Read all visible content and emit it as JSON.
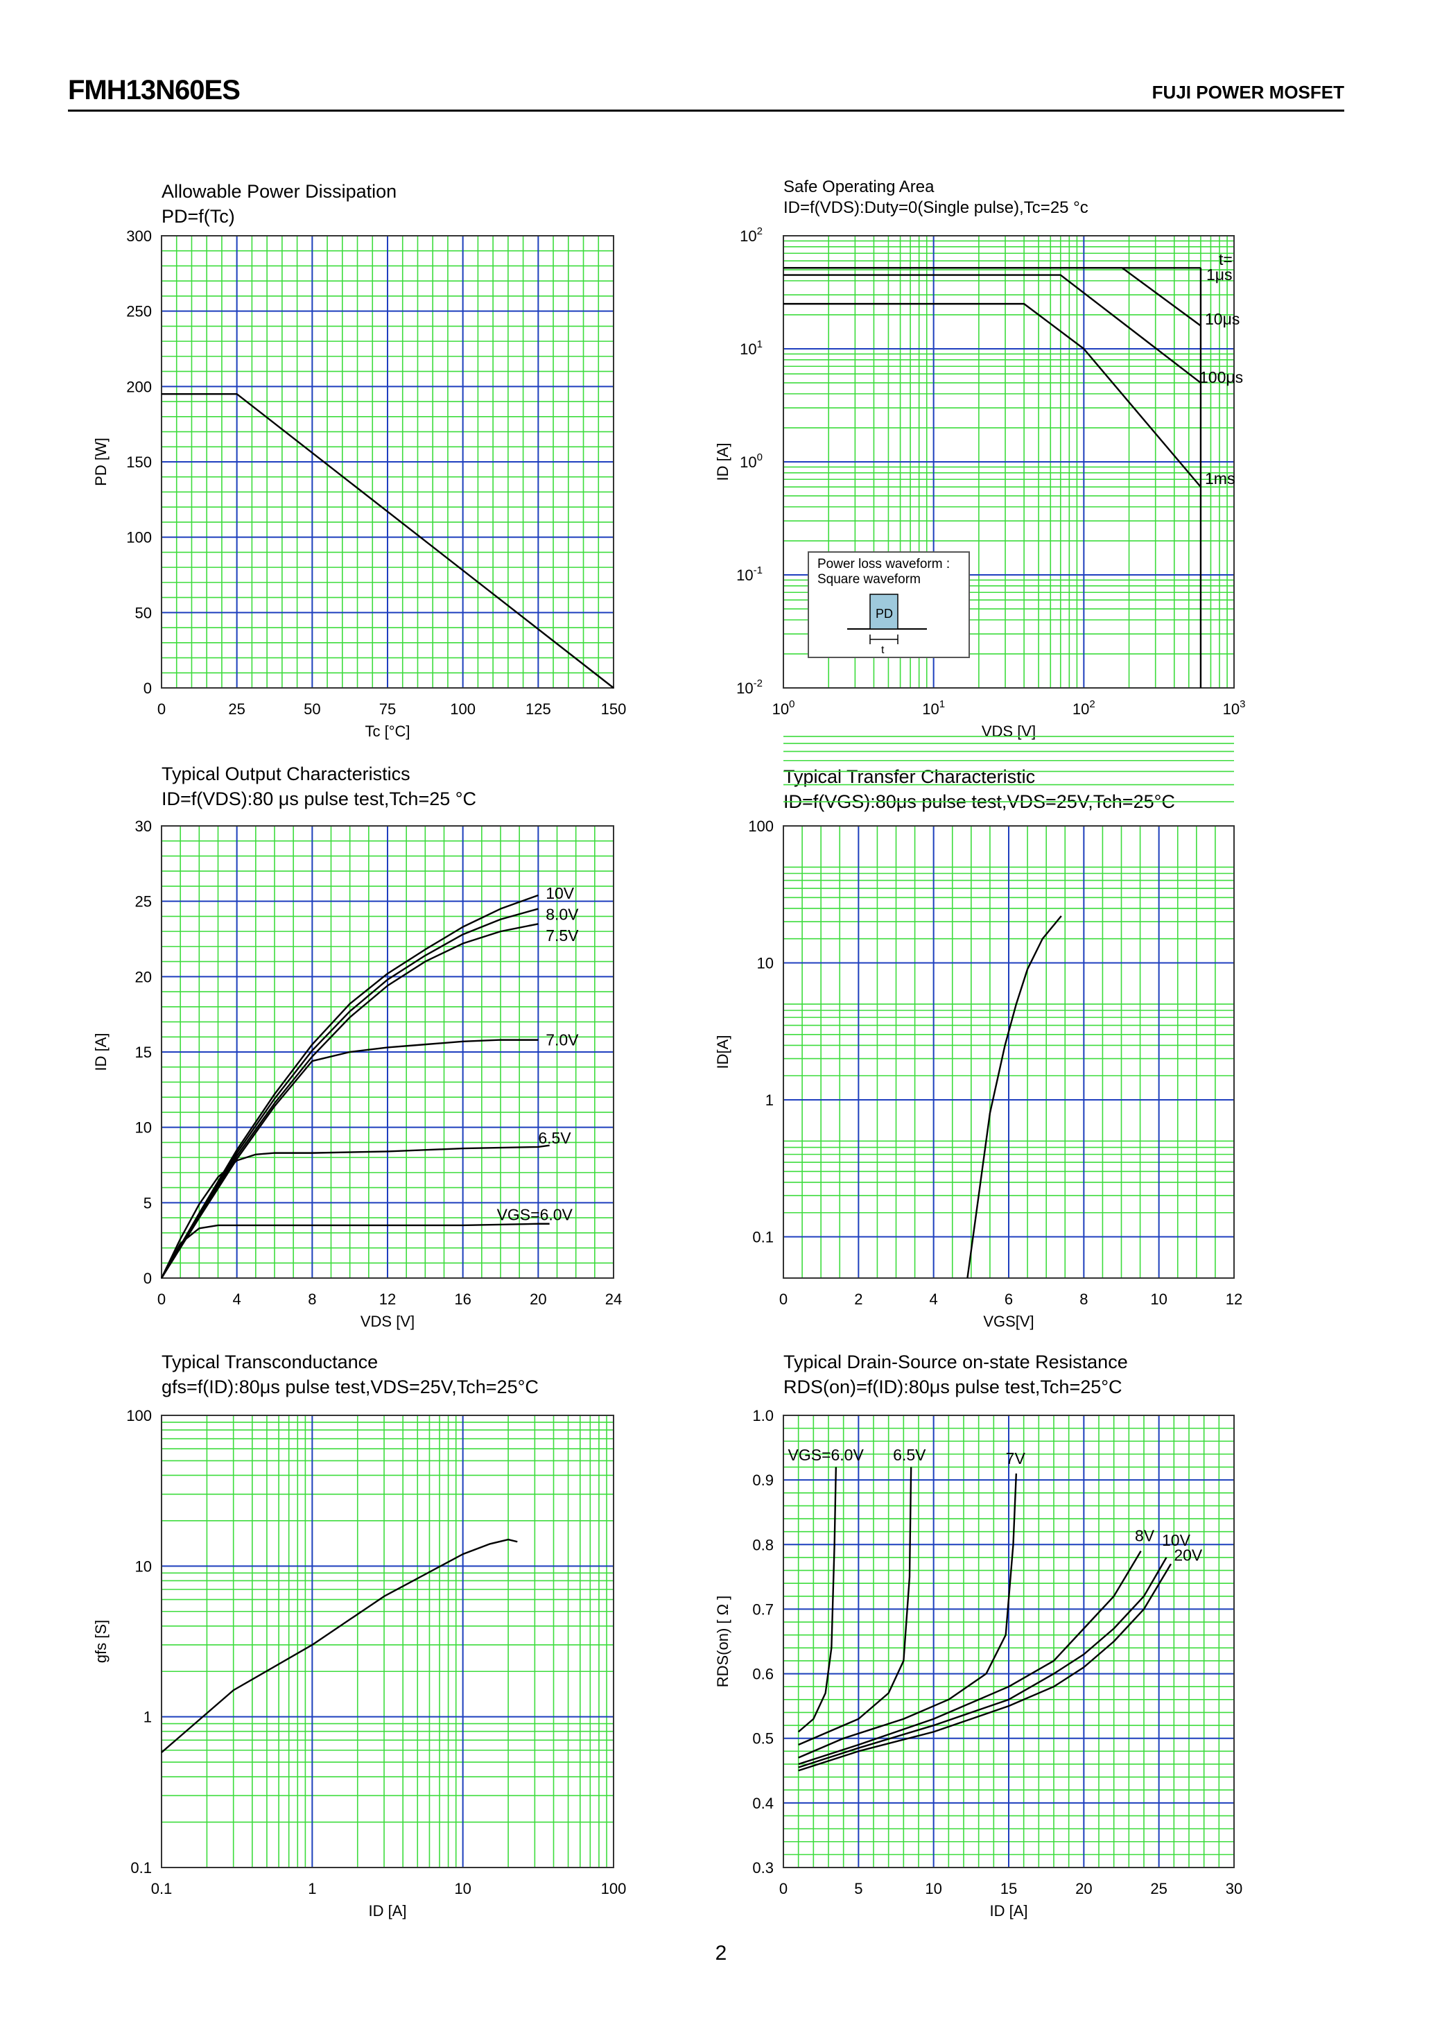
{
  "header": {
    "part_number": "FMH13N60ES",
    "brand_line": "FUJI POWER MOSFET"
  },
  "page_number": "2",
  "colors": {
    "minor_grid": "#3ddc3d",
    "major_grid": "#1f3fbf",
    "curve": "#000000"
  },
  "charts": [
    {
      "id": "pd",
      "title": "Allowable Power Dissipation",
      "subtitle": "PD=f(Tc)",
      "xlabel": "Tc [°C]",
      "ylabel": "PD [W]",
      "x_ticks": [
        "0",
        "25",
        "50",
        "75",
        "100",
        "125",
        "150"
      ],
      "y_ticks": [
        "0",
        "50",
        "100",
        "150",
        "200",
        "250",
        "300"
      ]
    },
    {
      "id": "soa",
      "title": "Safe Operating Area",
      "subtitle": "ID=f(VDS):Duty=0(Single pulse),Tc=25 °c",
      "xlabel": "VDS [V]",
      "ylabel": "ID [A]",
      "x_ticks": [
        "10^0",
        "10^1",
        "10^2",
        "10^3"
      ],
      "y_ticks": [
        "10^-2",
        "10^-1",
        "10^0",
        "10^1",
        "10^2"
      ],
      "curve_labels": [
        "t=",
        "1μs",
        "10μs",
        "100μs",
        "1ms"
      ],
      "inset": {
        "line1": "Power loss waveform :",
        "line2": "Square waveform",
        "pd_label": "PD",
        "t_label": "t"
      }
    },
    {
      "id": "output",
      "title": "Typical Output Characteristics",
      "subtitle": "ID=f(VDS):80 μs pulse test,Tch=25 °C",
      "xlabel": "VDS [V]",
      "ylabel": "ID [A]",
      "x_ticks": [
        "0",
        "4",
        "8",
        "12",
        "16",
        "20",
        "24"
      ],
      "y_ticks": [
        "0",
        "5",
        "10",
        "15",
        "20",
        "25",
        "30"
      ],
      "curve_labels": [
        "10V",
        "8.0V",
        "7.5V",
        "7.0V",
        "6.5V",
        "VGS=6.0V"
      ]
    },
    {
      "id": "transfer",
      "title": "Typical Transfer Characteristic",
      "subtitle": "ID=f(VGS):80μs pulse test,VDS=25V,Tch=25°C",
      "xlabel": "VGS[V]",
      "ylabel": "ID[A]",
      "x_ticks": [
        "0",
        "2",
        "4",
        "6",
        "8",
        "10",
        "12"
      ],
      "y_ticks": [
        "0.1",
        "1",
        "10",
        "100"
      ]
    },
    {
      "id": "gfs",
      "title": "Typical Transconductance",
      "subtitle": "gfs=f(ID):80μs pulse test,VDS=25V,Tch=25°C",
      "xlabel": "ID [A]",
      "ylabel": "gfs [S]",
      "x_ticks": [
        "0.1",
        "1",
        "10",
        "100"
      ],
      "y_ticks": [
        "0.1",
        "1",
        "10",
        "100"
      ]
    },
    {
      "id": "rds",
      "title": "Typical Drain-Source on-state Resistance",
      "subtitle": "RDS(on)=f(ID):80μs pulse test,Tch=25°C",
      "xlabel": "ID [A]",
      "ylabel": "RDS(on) [ Ω ]",
      "x_ticks": [
        "0",
        "5",
        "10",
        "15",
        "20",
        "25",
        "30"
      ],
      "y_ticks": [
        "0.3",
        "0.4",
        "0.5",
        "0.6",
        "0.7",
        "0.8",
        "0.9",
        "1.0"
      ],
      "curve_labels": [
        "VGS=6.0V",
        "6.5V",
        "7V",
        "8V",
        "10V",
        "20V"
      ]
    }
  ],
  "chart_data": [
    {
      "type": "line",
      "title": "Allowable Power Dissipation",
      "subtitle": "PD=f(Tc)",
      "xlabel": "Tc [°C]",
      "ylabel": "PD [W]",
      "xlim": [
        0,
        150
      ],
      "ylim": [
        0,
        300
      ],
      "grid": true,
      "series": [
        {
          "x": [
            0,
            25,
            150
          ],
          "y": [
            195,
            195,
            0
          ]
        }
      ]
    },
    {
      "type": "line",
      "title": "Safe Operating Area",
      "xlabel": "VDS [V]",
      "ylabel": "ID [A]",
      "x_scale": "log",
      "y_scale": "log",
      "xlim": [
        1,
        1000
      ],
      "ylim": [
        0.01,
        100
      ],
      "grid": true,
      "series": [
        {
          "name": "1μs",
          "x": [
            1,
            180,
            600
          ],
          "y": [
            52,
            52,
            52
          ]
        },
        {
          "name": "10μs",
          "x": [
            1,
            180,
            600
          ],
          "y": [
            52,
            52,
            16
          ]
        },
        {
          "name": "100μs",
          "x": [
            1,
            70,
            600
          ],
          "y": [
            45,
            45,
            5
          ]
        },
        {
          "name": "1ms",
          "x": [
            1,
            40,
            100,
            600
          ],
          "y": [
            25,
            25,
            10,
            0.6
          ]
        },
        {
          "name": "limit",
          "x": [
            600,
            600
          ],
          "y": [
            0.01,
            52
          ]
        }
      ]
    },
    {
      "type": "line",
      "title": "Typical Output Characteristics",
      "xlabel": "VDS [V]",
      "ylabel": "ID [A]",
      "xlim": [
        0,
        24
      ],
      "ylim": [
        0,
        30
      ],
      "grid": true,
      "series": [
        {
          "name": "10V",
          "x": [
            0,
            2,
            4,
            6,
            8,
            10,
            12,
            14,
            16,
            18,
            20
          ],
          "y": [
            0,
            4.3,
            8.5,
            12.2,
            15.5,
            18.2,
            20.2,
            21.8,
            23.3,
            24.5,
            25.4
          ]
        },
        {
          "name": "8.0V",
          "x": [
            0,
            2,
            4,
            6,
            8,
            10,
            12,
            14,
            16,
            18,
            20
          ],
          "y": [
            0,
            4.2,
            8.3,
            11.9,
            15.1,
            17.7,
            19.8,
            21.4,
            22.8,
            23.8,
            24.5
          ]
        },
        {
          "name": "7.5V",
          "x": [
            0,
            2,
            4,
            6,
            8,
            10,
            12,
            14,
            16,
            18,
            20
          ],
          "y": [
            0,
            4.1,
            8.1,
            11.6,
            14.7,
            17.3,
            19.4,
            21.0,
            22.2,
            23.0,
            23.5
          ]
        },
        {
          "name": "7.0V",
          "x": [
            0,
            2,
            4,
            6,
            8,
            10,
            12,
            14,
            16,
            18,
            20
          ],
          "y": [
            0,
            4.0,
            7.9,
            11.4,
            14.4,
            15.0,
            15.3,
            15.5,
            15.7,
            15.8,
            15.8
          ]
        },
        {
          "name": "6.5V",
          "x": [
            0,
            1,
            2,
            3,
            4,
            5,
            6,
            8,
            12,
            16,
            20,
            20.6
          ],
          "y": [
            0,
            2.6,
            4.9,
            6.7,
            7.8,
            8.2,
            8.3,
            8.3,
            8.4,
            8.6,
            8.7,
            8.8
          ]
        },
        {
          "name": "VGS=6.0V",
          "x": [
            0,
            1,
            2,
            3,
            4,
            8,
            12,
            16,
            20,
            20.6
          ],
          "y": [
            0,
            2.3,
            3.3,
            3.5,
            3.5,
            3.5,
            3.5,
            3.5,
            3.6,
            3.6
          ]
        }
      ]
    },
    {
      "type": "line",
      "title": "Typical Transfer Characteristic",
      "xlabel": "VGS[V]",
      "ylabel": "ID[A]",
      "y_scale": "log",
      "xlim": [
        0,
        12
      ],
      "ylim": [
        0.05,
        100
      ],
      "grid": true,
      "series": [
        {
          "x": [
            4.9,
            5.2,
            5.5,
            5.9,
            6.2,
            6.5,
            6.9,
            7.4
          ],
          "y": [
            0.05,
            0.2,
            0.8,
            2.5,
            5,
            9,
            15,
            22
          ]
        }
      ]
    },
    {
      "type": "line",
      "title": "Typical Transconductance",
      "xlabel": "ID [A]",
      "ylabel": "gfs [S]",
      "x_scale": "log",
      "y_scale": "log",
      "xlim": [
        0.1,
        100
      ],
      "ylim": [
        0.1,
        100
      ],
      "grid": true,
      "series": [
        {
          "x": [
            0.1,
            0.3,
            1,
            3,
            10,
            15,
            20,
            23
          ],
          "y": [
            0.58,
            1.5,
            3.0,
            6.3,
            12,
            14,
            15,
            14.5
          ]
        }
      ]
    },
    {
      "type": "line",
      "title": "Typical Drain-Source on-state Resistance",
      "xlabel": "ID [A]",
      "ylabel": "RDS(on) [ Ω ]",
      "xlim": [
        0,
        30
      ],
      "ylim": [
        0.3,
        1.0
      ],
      "grid": true,
      "series": [
        {
          "name": "VGS=6.0V",
          "x": [
            1,
            2,
            2.8,
            3.2,
            3.4,
            3.5
          ],
          "y": [
            0.51,
            0.53,
            0.57,
            0.64,
            0.8,
            0.92
          ]
        },
        {
          "name": "6.5V",
          "x": [
            1,
            3,
            5,
            7,
            8,
            8.4,
            8.5
          ],
          "y": [
            0.49,
            0.51,
            0.53,
            0.57,
            0.62,
            0.75,
            0.92
          ]
        },
        {
          "name": "7V",
          "x": [
            1,
            4,
            8,
            11,
            13.5,
            14.8,
            15.3,
            15.5
          ],
          "y": [
            0.47,
            0.5,
            0.53,
            0.56,
            0.6,
            0.66,
            0.8,
            0.91
          ]
        },
        {
          "name": "8V",
          "x": [
            1,
            5,
            10,
            15,
            18,
            20,
            22,
            23.8
          ],
          "y": [
            0.46,
            0.49,
            0.53,
            0.58,
            0.62,
            0.67,
            0.72,
            0.79
          ]
        },
        {
          "name": "10V",
          "x": [
            1,
            5,
            10,
            15,
            18,
            20,
            22,
            24,
            25.5
          ],
          "y": [
            0.455,
            0.485,
            0.52,
            0.56,
            0.6,
            0.63,
            0.67,
            0.72,
            0.78
          ]
        },
        {
          "name": "20V",
          "x": [
            1,
            5,
            10,
            15,
            18,
            20,
            22,
            24,
            25.8
          ],
          "y": [
            0.45,
            0.48,
            0.51,
            0.55,
            0.58,
            0.61,
            0.65,
            0.7,
            0.77
          ]
        }
      ]
    }
  ]
}
